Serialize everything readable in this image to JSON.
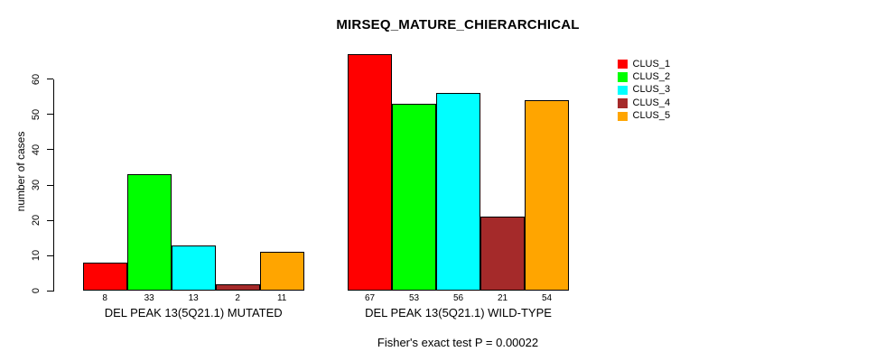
{
  "figure": {
    "background": "#ffffff",
    "text_color": "#000000"
  },
  "chart_data": {
    "type": "bar",
    "title": "MIRSEQ_MATURE_CHIERARCHICAL",
    "xlabel": "",
    "ylabel": "number of cases",
    "annotation": "Fisher's exact test P = 0.00022",
    "ylim": [
      0,
      67
    ],
    "y_ticks": [
      0,
      10,
      20,
      30,
      40,
      50,
      60
    ],
    "grid": false,
    "legend_position": "top-right",
    "bar_value_labels": true,
    "categories": [
      "DEL PEAK 13(5Q21.1) MUTATED",
      "DEL PEAK 13(5Q21.1) WILD-TYPE"
    ],
    "series": [
      {
        "name": "CLUS_1",
        "color": "#FF0000",
        "values": [
          8,
          67
        ]
      },
      {
        "name": "CLUS_2",
        "color": "#00FF00",
        "values": [
          33,
          53
        ]
      },
      {
        "name": "CLUS_3",
        "color": "#00FFFF",
        "values": [
          13,
          56
        ]
      },
      {
        "name": "CLUS_4",
        "color": "#A52A2A",
        "values": [
          2,
          21
        ]
      },
      {
        "name": "CLUS_5",
        "color": "#FFA500",
        "values": [
          11,
          54
        ]
      }
    ]
  }
}
